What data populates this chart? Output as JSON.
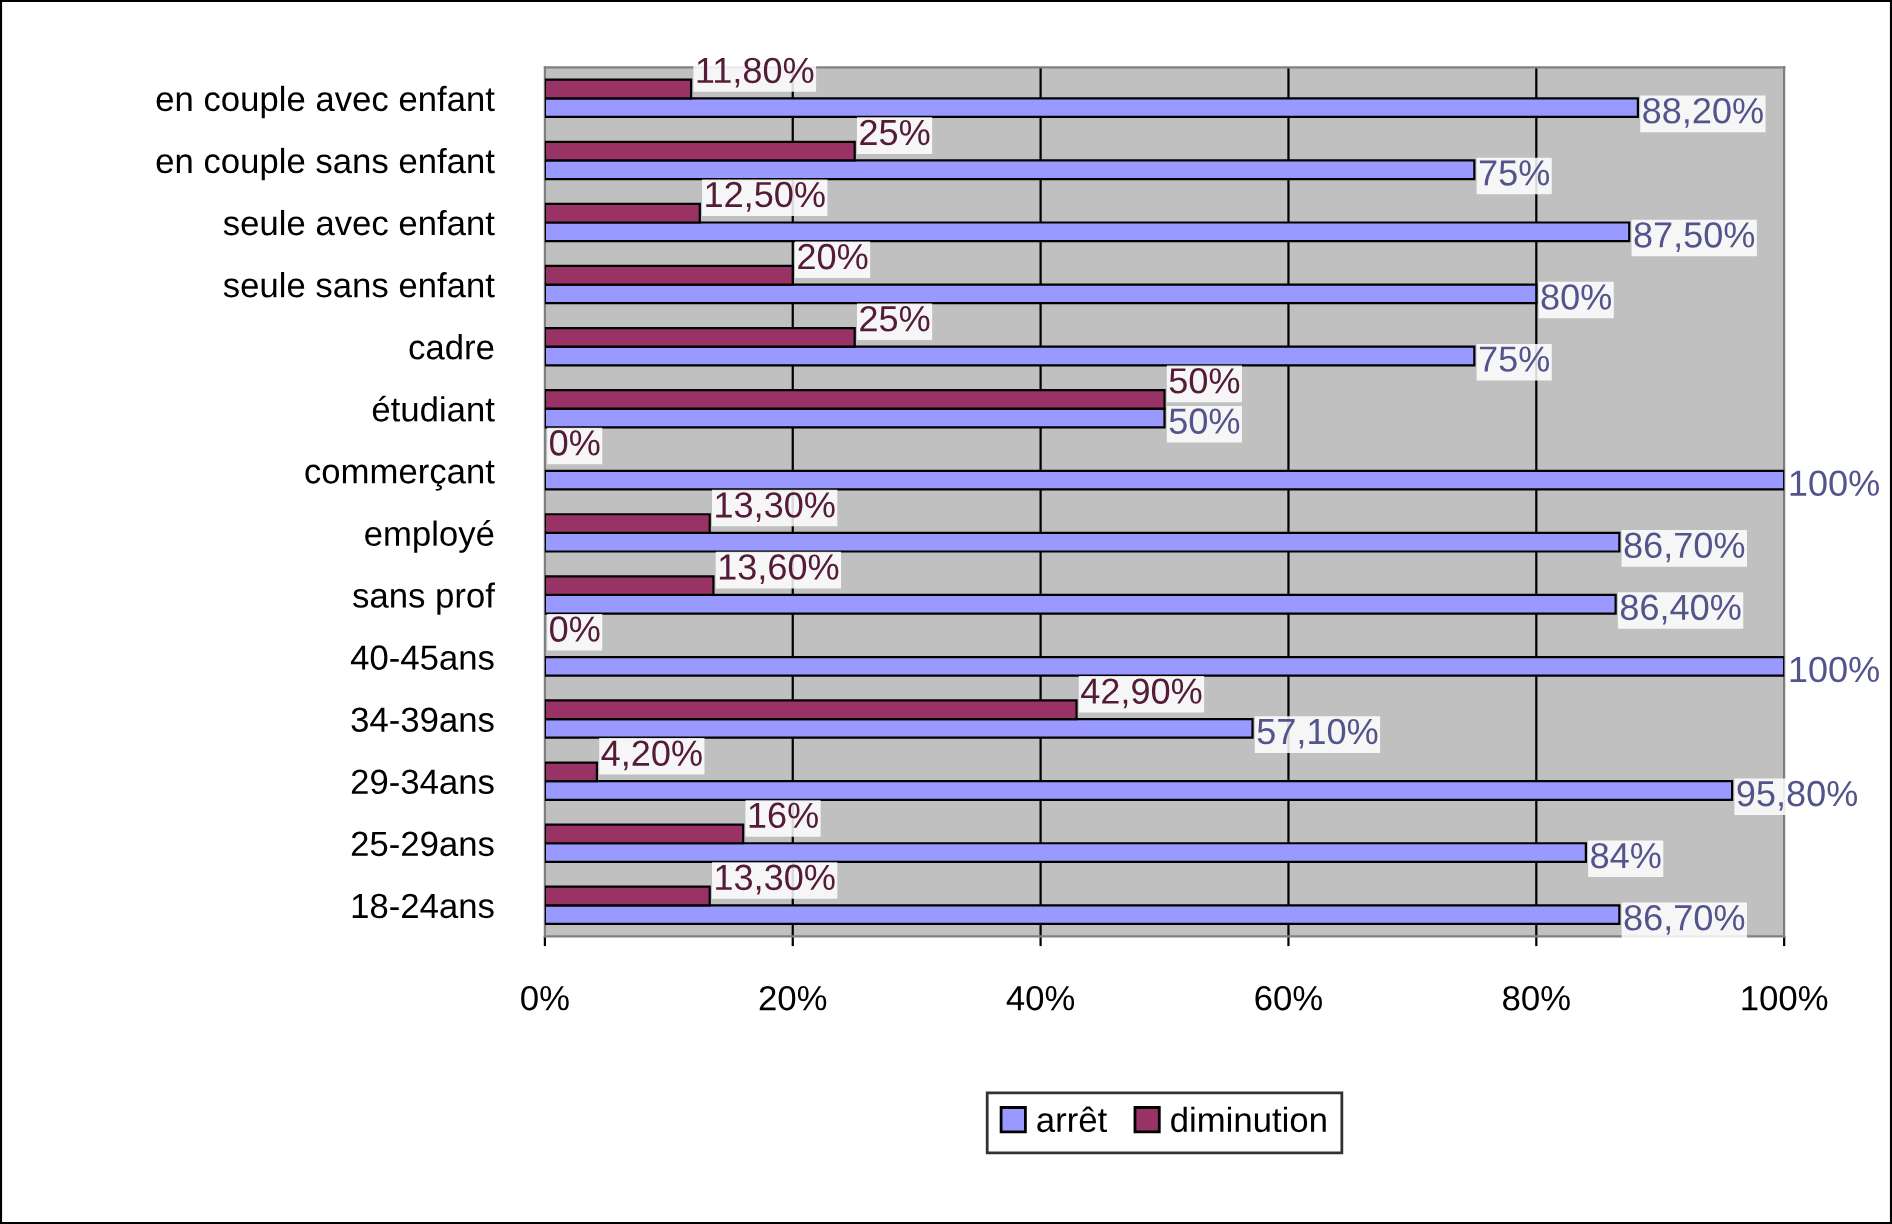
{
  "chart_data": {
    "type": "bar",
    "orientation": "horizontal",
    "categories": [
      "en couple avec enfant",
      "en couple sans enfant",
      "seule avec enfant",
      "seule sans enfant",
      "cadre",
      "étudiant",
      "commerçant",
      "employé",
      "sans prof",
      "40-45ans",
      "34-39ans",
      "29-34ans",
      "25-29ans",
      "18-24ans"
    ],
    "series": [
      {
        "name": "arrêt",
        "color": "#9999ff",
        "values": [
          88.2,
          75,
          87.5,
          80,
          75,
          50,
          100,
          86.7,
          86.4,
          100,
          57.1,
          95.8,
          84,
          86.7
        ],
        "value_labels": [
          "88,20%",
          "75%",
          "87,50%",
          "80%",
          "75%",
          "50%",
          "100%",
          "86,70%",
          "86,40%",
          "100%",
          "57,10%",
          "95,80%",
          "84%",
          "86,70%"
        ]
      },
      {
        "name": "diminution",
        "color": "#993366",
        "values": [
          11.8,
          25,
          12.5,
          20,
          25,
          50,
          0,
          13.3,
          13.6,
          0,
          42.9,
          4.2,
          16,
          13.3
        ],
        "value_labels": [
          "11,80%",
          "25%",
          "12,50%",
          "20%",
          "25%",
          "50%",
          "0%",
          "13,30%",
          "13,60%",
          "0%",
          "42,90%",
          "4,20%",
          "16%",
          "13,30%"
        ]
      }
    ],
    "xlim": [
      0,
      100
    ],
    "xticks": [
      {
        "value": 0,
        "label": "0%"
      },
      {
        "value": 20,
        "label": "20%"
      },
      {
        "value": 40,
        "label": "40%"
      },
      {
        "value": 60,
        "label": "60%"
      },
      {
        "value": 80,
        "label": "80%"
      },
      {
        "value": 100,
        "label": "100%"
      }
    ],
    "grid": "x",
    "legend": "bottom"
  }
}
